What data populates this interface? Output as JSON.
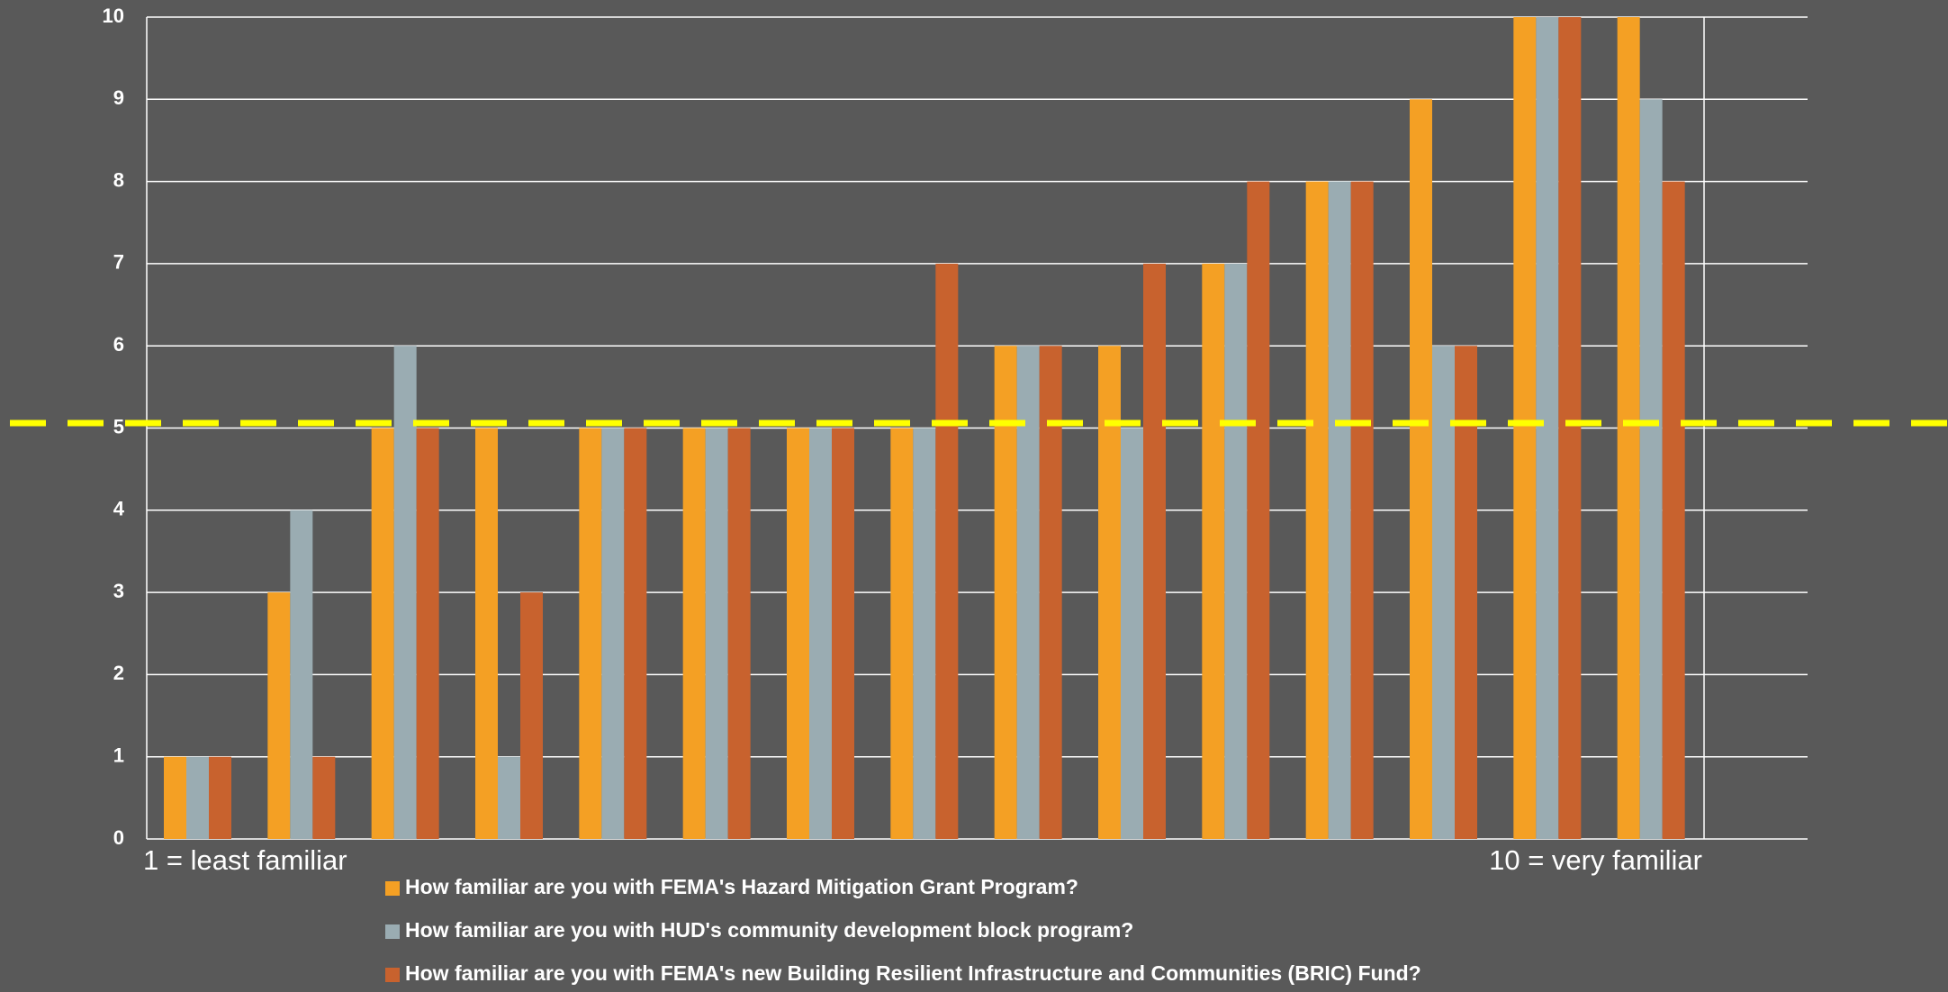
{
  "chart_data": {
    "type": "bar",
    "categories": [
      null,
      null,
      null,
      null,
      null,
      null,
      null,
      null,
      null,
      null,
      null,
      null,
      null,
      null,
      null
    ],
    "series": [
      {
        "name": "How familiar are you with FEMA's Hazard Mitigation Grant Program?",
        "color": "#f4a024",
        "values": [
          1,
          3,
          5,
          5,
          5,
          5,
          5,
          5,
          6,
          6,
          7,
          8,
          9,
          10,
          10
        ]
      },
      {
        "name": "How familiar are you with HUD's community development block program?",
        "color": "#9aacb2",
        "values": [
          1,
          4,
          6,
          1,
          5,
          5,
          5,
          5,
          6,
          5,
          7,
          8,
          6,
          10,
          9
        ]
      },
      {
        "name": "How familiar are you with FEMA's new Building Resilient Infrastructure and Communities (BRIC) Fund?",
        "color": "#c8622e",
        "values": [
          1,
          1,
          5,
          3,
          5,
          5,
          5,
          7,
          6,
          7,
          8,
          8,
          6,
          10,
          8
        ]
      }
    ],
    "annotations": [
      "1 = least familiar",
      "10 = very familiar"
    ],
    "reference_line": {
      "value": 5.06,
      "color": "#ffff00"
    },
    "ylim": [
      0,
      10
    ],
    "yticks": [
      0,
      1,
      2,
      3,
      4,
      5,
      6,
      7,
      8,
      9,
      10
    ],
    "grid": true,
    "legend": "bottom"
  }
}
